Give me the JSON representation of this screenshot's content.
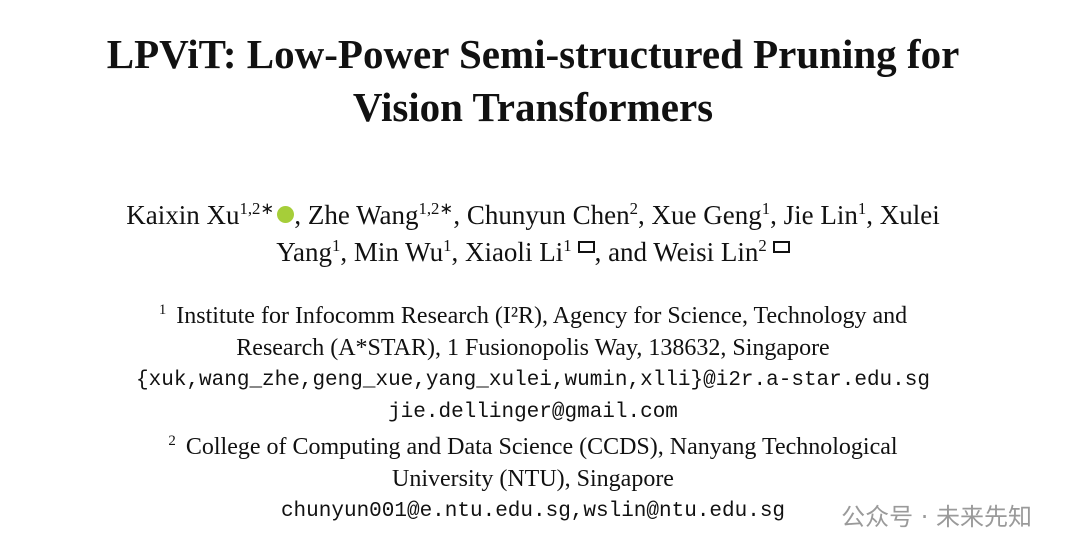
{
  "header": {
    "title_lines": [
      "LPViT: Low-Power Semi-structured Pruning for",
      "Vision Transformers"
    ]
  },
  "author_lines": [
    [
      {
        "text": "Kaixin Xu",
        "sup": "1,2∗",
        "orcid": true
      },
      {
        "text": ", Zhe Wang",
        "sup": "1,2∗"
      },
      {
        "text": ", Chunyun Chen",
        "sup": "2"
      },
      {
        "text": ", Xue Geng",
        "sup": "1"
      },
      {
        "text": ", Jie Lin",
        "sup": "1"
      },
      {
        "text": ", Xulei"
      }
    ],
    [
      {
        "text": "Yang",
        "sup": "1"
      },
      {
        "text": ", Min Wu",
        "sup": "1"
      },
      {
        "text": ", Xiaoli Li",
        "sup": "1",
        "email": true
      },
      {
        "text": ", and Weisi Lin",
        "sup": "2",
        "email": true
      }
    ]
  ],
  "affiliations": [
    {
      "mark": "1",
      "lines": [
        "Institute for Infocomm Research (I²R), Agency for Science, Technology and",
        "Research (A*STAR), 1 Fusionopolis Way, 138632, Singapore"
      ],
      "emails": [
        "{xuk,wang_zhe,geng_xue,yang_xulei,wumin,xlli}@i2r.a-star.edu.sg",
        "jie.dellinger@gmail.com"
      ]
    },
    {
      "mark": "2",
      "lines": [
        "College of Computing and Data Science (CCDS), Nanyang Technological",
        "University (NTU), Singapore"
      ],
      "emails": [
        "chunyun001@e.ntu.edu.sg,wslin@ntu.edu.sg"
      ]
    }
  ],
  "watermark": "公众号 · 未来先知"
}
